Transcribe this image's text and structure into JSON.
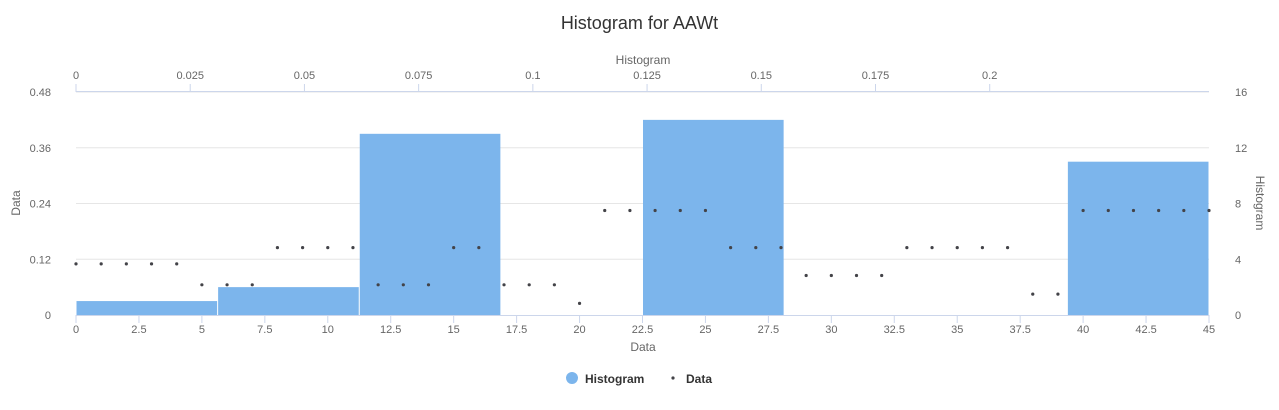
{
  "chart_data": {
    "type": "histogram",
    "title": "Histogram for AAWt",
    "xlabel": "Data",
    "ylabel": "Data",
    "x2label": "Histogram",
    "y2label": "Histogram",
    "xlim": [
      0,
      45
    ],
    "ylim": [
      0,
      0.48
    ],
    "x2lim": [
      0,
      0.248
    ],
    "y2lim": [
      0,
      16
    ],
    "x_ticks": [
      0,
      2.5,
      5,
      7.5,
      10,
      12.5,
      15,
      17.5,
      20,
      22.5,
      25,
      27.5,
      30,
      32.5,
      35,
      37.5,
      40,
      42.5,
      45
    ],
    "y_ticks": [
      0,
      0.12,
      0.24,
      0.36,
      0.48
    ],
    "x2_ticks": [
      0,
      0.025,
      0.05,
      0.075,
      0.1,
      0.125,
      0.15,
      0.175,
      0.2
    ],
    "y2_ticks": [
      0,
      4,
      8,
      12,
      16
    ],
    "grid": true,
    "legend_position": "bottom-center",
    "colors": {
      "histogram": "#7cb5ec",
      "data": "#434348",
      "grid": "#e6e6e6",
      "axis": "#ccd6eb"
    },
    "series": [
      {
        "name": "Histogram",
        "type": "column",
        "bins": [
          {
            "from": 0,
            "to": 5.625,
            "count": 1
          },
          {
            "from": 5.625,
            "to": 11.25,
            "count": 2
          },
          {
            "from": 11.25,
            "to": 16.875,
            "count": 13
          },
          {
            "from": 16.875,
            "to": 22.5,
            "count": 0
          },
          {
            "from": 22.5,
            "to": 28.125,
            "count": 14
          },
          {
            "from": 28.125,
            "to": 33.75,
            "count": 0
          },
          {
            "from": 33.75,
            "to": 39.375,
            "count": 0
          },
          {
            "from": 39.375,
            "to": 45,
            "count": 11
          }
        ]
      },
      {
        "name": "Data",
        "type": "scatter",
        "x": [
          0,
          1,
          2,
          3,
          4,
          5,
          6,
          7,
          8,
          9,
          10,
          11,
          12,
          13,
          14,
          15,
          16,
          17,
          18,
          19,
          20,
          21,
          22,
          23,
          24,
          25,
          26,
          27,
          28,
          29,
          30,
          31,
          32,
          33,
          34,
          35,
          36,
          37,
          38,
          39,
          40,
          41,
          42,
          43,
          44,
          45
        ],
        "y": [
          0.11,
          0.11,
          0.11,
          0.11,
          0.11,
          0.065,
          0.065,
          0.065,
          0.145,
          0.145,
          0.145,
          0.145,
          0.065,
          0.065,
          0.065,
          0.145,
          0.145,
          0.065,
          0.065,
          0.065,
          0.025,
          0.225,
          0.225,
          0.225,
          0.225,
          0.225,
          0.145,
          0.145,
          0.145,
          0.085,
          0.085,
          0.085,
          0.085,
          0.145,
          0.145,
          0.145,
          0.145,
          0.145,
          0.045,
          0.045,
          0.225,
          0.225,
          0.225,
          0.225,
          0.225,
          0.225
        ]
      }
    ]
  }
}
